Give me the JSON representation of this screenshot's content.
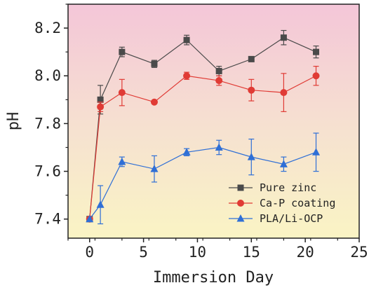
{
  "chart_data": {
    "type": "line",
    "title": "",
    "xlabel": "Immersion Day",
    "ylabel": "pH",
    "xlim": [
      -2,
      25
    ],
    "ylim": [
      7.32,
      8.3
    ],
    "xticks": [
      0,
      5,
      10,
      15,
      20,
      25
    ],
    "xtick_labels": [
      "0",
      "5",
      "10",
      "15",
      "20",
      "25"
    ],
    "yticks": [
      7.4,
      7.6,
      7.8,
      8.0,
      8.2
    ],
    "ytick_labels": [
      "7.4",
      "7.6",
      "7.8",
      "8.0",
      "8.2"
    ],
    "grid": false,
    "legend_position": "bottom-right",
    "background": "vertical gradient from pink (top) to light yellow (bottom)",
    "x": [
      0,
      1,
      3,
      6,
      9,
      12,
      15,
      18,
      21
    ],
    "series": [
      {
        "name": "Pure zinc",
        "marker": "square",
        "color": "#4a4a4a",
        "values": [
          7.4,
          7.9,
          8.1,
          8.05,
          8.15,
          8.02,
          8.07,
          8.16,
          8.1
        ],
        "errors": [
          0.0,
          0.06,
          0.02,
          0.015,
          0.02,
          0.02,
          0.01,
          0.03,
          0.025
        ]
      },
      {
        "name": "Ca-P coating",
        "marker": "circle",
        "color": "#e03b35",
        "values": [
          7.4,
          7.87,
          7.93,
          7.89,
          8.0,
          7.98,
          7.94,
          7.93,
          8.0
        ],
        "errors": [
          0.0,
          0.02,
          0.055,
          0.005,
          0.015,
          0.02,
          0.045,
          0.08,
          0.04
        ]
      },
      {
        "name": "PLA/Li-OCP",
        "marker": "triangle",
        "color": "#2f6fd6",
        "values": [
          7.4,
          7.46,
          7.64,
          7.61,
          7.68,
          7.7,
          7.66,
          7.63,
          7.68
        ],
        "errors": [
          0.0,
          0.08,
          0.02,
          0.055,
          0.015,
          0.03,
          0.075,
          0.03,
          0.08
        ]
      }
    ]
  }
}
